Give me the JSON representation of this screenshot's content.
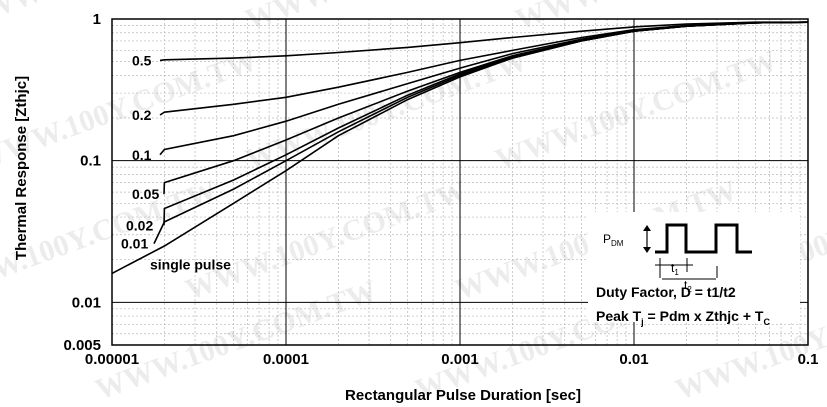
{
  "chart_data": {
    "type": "line",
    "title": "",
    "xlabel": "Rectangular Pulse Duration [sec]",
    "ylabel": "Thermal Response [Zthjc]",
    "xscale": "log",
    "yscale": "log",
    "xlim": [
      1e-05,
      0.1
    ],
    "ylim": [
      0.005,
      1
    ],
    "grid": true,
    "x_tick_labels": [
      "0.00001",
      "0.0001",
      "0.001",
      "0.01",
      "0.1"
    ],
    "y_tick_labels": [
      "1",
      "0.1",
      "0.01",
      "0.005"
    ],
    "x": [
      1e-05,
      2e-05,
      5e-05,
      0.0001,
      0.0002,
      0.0005,
      0.001,
      0.002,
      0.005,
      0.01,
      0.02,
      0.05,
      0.1
    ],
    "series": [
      {
        "name": "0.5",
        "values": [
          0.51,
          0.515,
          0.53,
          0.55,
          0.58,
          0.63,
          0.68,
          0.74,
          0.82,
          0.88,
          0.92,
          0.95,
          0.95
        ]
      },
      {
        "name": "0.2",
        "values": [
          0.21,
          0.22,
          0.25,
          0.28,
          0.33,
          0.42,
          0.51,
          0.6,
          0.74,
          0.84,
          0.9,
          0.94,
          0.95
        ]
      },
      {
        "name": "0.1",
        "values": [
          0.11,
          0.12,
          0.15,
          0.19,
          0.25,
          0.35,
          0.45,
          0.57,
          0.72,
          0.83,
          0.9,
          0.94,
          0.95
        ]
      },
      {
        "name": "0.05",
        "values": [
          0.058,
          0.07,
          0.1,
          0.14,
          0.2,
          0.31,
          0.42,
          0.55,
          0.71,
          0.82,
          0.89,
          0.94,
          0.95
        ]
      },
      {
        "name": "0.02",
        "values": [
          0.035,
          0.046,
          0.073,
          0.11,
          0.17,
          0.29,
          0.41,
          0.54,
          0.7,
          0.82,
          0.89,
          0.94,
          0.95
        ]
      },
      {
        "name": "0.01",
        "values": [
          0.026,
          0.037,
          0.063,
          0.1,
          0.16,
          0.28,
          0.4,
          0.53,
          0.7,
          0.82,
          0.89,
          0.94,
          0.95
        ]
      },
      {
        "name": "single pulse",
        "values": [
          0.016,
          0.025,
          0.05,
          0.085,
          0.15,
          0.27,
          0.39,
          0.53,
          0.7,
          0.82,
          0.89,
          0.94,
          0.95
        ]
      }
    ],
    "legend": "inline labels at left of curves"
  },
  "inset": {
    "pdm": "P",
    "pdm_sub": "DM",
    "t1": "t",
    "t1_sub": "1",
    "t2": "t",
    "t2_sub": "2",
    "duty_factor": "Duty Factor, D = t1/t2",
    "peak_prefix": "Peak T",
    "peak_j_sub": "j",
    "peak_mid": " = Pdm x Zthjc + T",
    "peak_c_sub": "C"
  },
  "watermark": "WWW.100Y.COM.TW"
}
